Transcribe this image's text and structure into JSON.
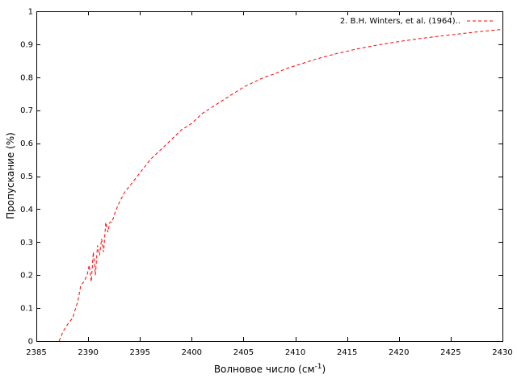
{
  "chart_data": {
    "type": "line",
    "xlabel": "Волновое число (см",
    "xlabel_sup": "-1",
    "xlabel_tail": ")",
    "ylabel": "Пропускание (%)",
    "xlim": [
      2385,
      2430
    ],
    "ylim": [
      0,
      1
    ],
    "x_ticks": [
      2385,
      2390,
      2395,
      2400,
      2405,
      2410,
      2415,
      2420,
      2425,
      2430
    ],
    "y_ticks": [
      0,
      0.1,
      0.2,
      0.3,
      0.4,
      0.5,
      0.6,
      0.7,
      0.8,
      0.9,
      1
    ],
    "y_tick_labels": [
      "0",
      "0.1",
      "0.2",
      "0.3",
      "0.4",
      "0.5",
      "0.6",
      "0.7",
      "0.8",
      "0.9",
      "1"
    ],
    "grid": false,
    "legend_position": "top-right",
    "series": [
      {
        "name": "2. B.H. Winters, et al. (1964)..",
        "color": "#ff0000",
        "style": "dashed",
        "x": [
          2387.2,
          2387.6,
          2388.0,
          2388.5,
          2389.0,
          2389.3,
          2389.6,
          2389.9,
          2390.1,
          2390.3,
          2390.5,
          2390.7,
          2390.9,
          2391.1,
          2391.3,
          2391.5,
          2391.7,
          2391.9,
          2392.1,
          2392.3,
          2392.6,
          2393.0,
          2393.5,
          2394.0,
          2395.0,
          2396.0,
          2397.0,
          2398.0,
          2399.0,
          2400.0,
          2401.0,
          2402.0,
          2403.0,
          2404.0,
          2405.0,
          2406.0,
          2407.0,
          2408.0,
          2409.0,
          2410.0,
          2412.0,
          2414.0,
          2416.0,
          2418.0,
          2420.0,
          2422.0,
          2424.0,
          2426.0,
          2428.0,
          2430.0
        ],
        "values": [
          0.0,
          0.03,
          0.05,
          0.07,
          0.12,
          0.17,
          0.18,
          0.2,
          0.23,
          0.18,
          0.27,
          0.2,
          0.29,
          0.26,
          0.31,
          0.27,
          0.36,
          0.33,
          0.36,
          0.36,
          0.39,
          0.42,
          0.45,
          0.47,
          0.51,
          0.55,
          0.58,
          0.61,
          0.64,
          0.66,
          0.69,
          0.71,
          0.73,
          0.75,
          0.77,
          0.785,
          0.8,
          0.81,
          0.825,
          0.835,
          0.855,
          0.872,
          0.886,
          0.898,
          0.908,
          0.917,
          0.925,
          0.932,
          0.939,
          0.945
        ]
      }
    ]
  }
}
